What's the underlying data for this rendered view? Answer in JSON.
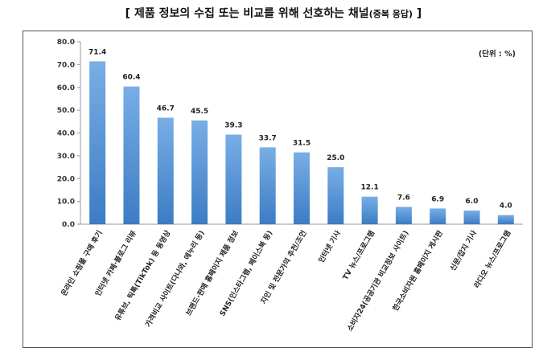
{
  "title": {
    "main": "[ 제품 정보의 수집 또는 비교를 위해 선호하는 채널",
    "suffix": "(중복 응답)",
    "close": "]"
  },
  "unit_label": "(단위 : %)",
  "colors": {
    "bar_top": "#79aee6",
    "bar_bottom": "#3c7cc4",
    "axis": "#999999"
  },
  "chart_data": {
    "type": "bar",
    "title": "제품 정보의 수집 또는 비교를 위해 선호하는 채널(중복 응답)",
    "xlabel": "",
    "ylabel": "",
    "ylim": [
      0,
      80
    ],
    "yticks": [
      "0.0",
      "10.0",
      "20.0",
      "30.0",
      "40.0",
      "50.0",
      "60.0",
      "70.0",
      "80.0"
    ],
    "grid": false,
    "categories": [
      "온라인 쇼핑몰 구매 후기",
      "인터넷 카페·블로그 리뷰",
      "유튜브, 틱톡(TikTok) 등 동영상",
      "가격비교 사이트(다나와, 에누리 등)",
      "브랜드·판매 홈페이지 제품 정보",
      "SNS(인스타그램, 페이스북 등)",
      "지인 및 전문가의 추천/조언",
      "인터넷 기사",
      "TV 뉴스/프로그램",
      "소비자24(공공기관 비교정보 사이트)",
      "한국소비자원 홈페이지 게시판",
      "신문/잡지 기사",
      "라디오 뉴스/프로그램"
    ],
    "values": [
      71.4,
      60.4,
      46.7,
      45.5,
      39.3,
      33.7,
      31.5,
      25.0,
      12.1,
      7.6,
      6.9,
      6.0,
      4.0
    ],
    "value_labels": [
      "71.4",
      "60.4",
      "46.7",
      "45.5",
      "39.3",
      "33.7",
      "31.5",
      "25.0",
      "12.1",
      "7.6",
      "6.9",
      "6.0",
      "4.0"
    ]
  }
}
